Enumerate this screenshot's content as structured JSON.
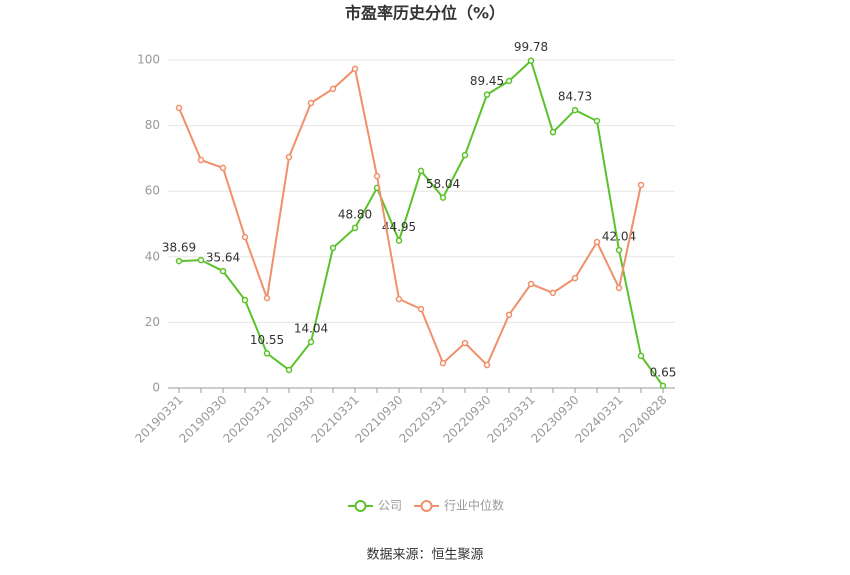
{
  "chart_data": {
    "type": "line",
    "title": "市盈率历史分位（%）",
    "categories": [
      "20190331",
      null,
      "20190930",
      null,
      "20200331",
      null,
      "20200930",
      null,
      "20210331",
      null,
      "20210930",
      null,
      "20220331",
      null,
      "20220930",
      null,
      "20230331",
      null,
      "20230930",
      null,
      "20240331",
      null,
      "20240828"
    ],
    "series": [
      {
        "name": "公司",
        "color": "#5cc22c",
        "values": [
          38.69,
          39.0,
          35.64,
          26.8,
          10.55,
          5.5,
          14.04,
          42.7,
          48.8,
          61.0,
          44.95,
          66.2,
          58.04,
          71.0,
          89.45,
          93.6,
          99.78,
          78.0,
          84.73,
          81.4,
          42.04,
          9.8,
          0.65
        ],
        "value_labels": [
          "38.69",
          null,
          "35.64",
          null,
          "10.55",
          null,
          "14.04",
          null,
          "48.80",
          null,
          "44.95",
          null,
          "58.04",
          null,
          "89.45",
          null,
          "99.78",
          null,
          "84.73",
          null,
          "42.04",
          null,
          "0.65"
        ]
      },
      {
        "name": "行业中位数",
        "color": "#f0906a",
        "values": [
          85.4,
          69.5,
          67.1,
          46.0,
          27.4,
          70.4,
          86.9,
          91.2,
          97.3,
          64.6,
          27.1,
          24.1,
          7.6,
          13.7,
          7.0,
          22.3,
          31.7,
          29.0,
          33.5,
          44.5,
          30.5,
          61.9,
          null
        ]
      }
    ],
    "ylim": [
      0,
      100
    ],
    "yticks": [
      0,
      20,
      40,
      60,
      80,
      100
    ],
    "grid": true,
    "source": "数据来源：恒生聚源"
  }
}
